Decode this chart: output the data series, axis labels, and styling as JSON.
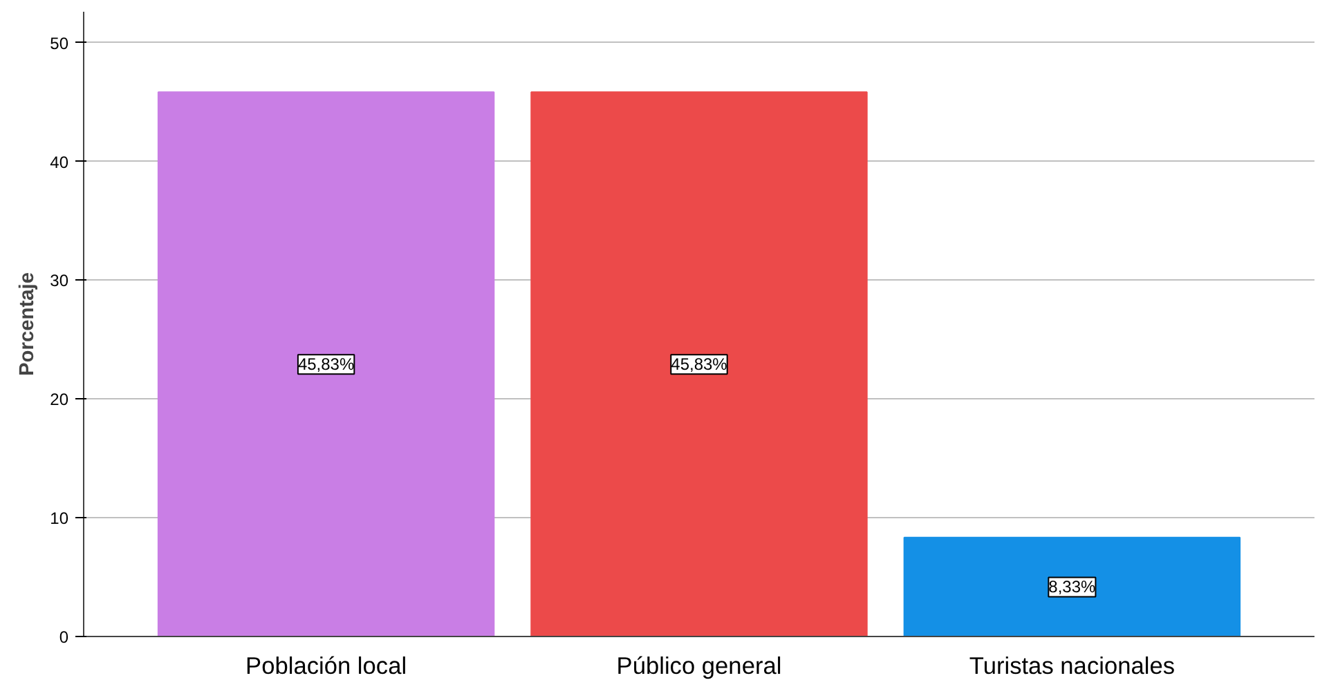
{
  "chart_data": {
    "type": "bar",
    "ylabel": "Porcentaje",
    "categories": [
      "Población local",
      "Público general",
      "Turistas nacionales"
    ],
    "values": [
      45.83,
      45.83,
      8.33
    ],
    "colors": [
      "#c97ee5",
      "#ec4a4a",
      "#1490e6"
    ],
    "value_labels": [
      "45,83%",
      "45,83%",
      "8,33%"
    ],
    "ylim": [
      0,
      52.6
    ],
    "yticks": [
      0,
      10,
      20,
      30,
      40,
      50
    ],
    "grid": "y"
  }
}
